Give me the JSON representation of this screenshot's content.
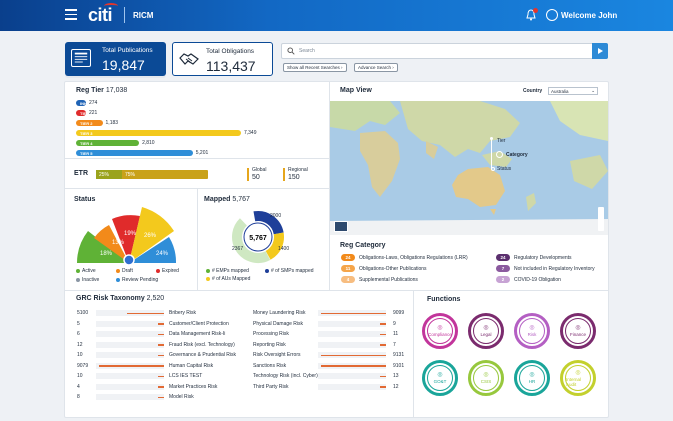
{
  "header": {
    "brand": "citi",
    "app_name": "RICM",
    "welcome": "Welcome John"
  },
  "stats": {
    "publications": {
      "label": "Total Publications",
      "value": "19,847"
    },
    "obligations": {
      "label": "Total Obligations",
      "value": "113,437"
    }
  },
  "search": {
    "placeholder": "Search",
    "recent_label": "Show all Recent Searches",
    "advanced_label": "Advance Search"
  },
  "reg_tier": {
    "title": "Reg Tier",
    "total": "17,038",
    "tiers": [
      {
        "label": "INHL",
        "value": "274",
        "fill": 0.0366,
        "color": "#1f63b5"
      },
      {
        "label": "TIER 1",
        "value": "221",
        "fill": 0.0296,
        "color": "#e02b2b"
      },
      {
        "label": "TIER 2",
        "value": "1,183",
        "fill": 0.158,
        "color": "#f28a1a"
      },
      {
        "label": "TIER 3",
        "value": "7,349",
        "fill": 0.982,
        "color": "#f3c91d"
      },
      {
        "label": "TIER 4",
        "value": "2,810",
        "fill": 0.3755,
        "color": "#5fb236"
      },
      {
        "label": "TIER 5",
        "value": "5,201",
        "fill": 0.695,
        "color": "#2f8ed8"
      }
    ]
  },
  "etr": {
    "title": "ETR",
    "seg1": "25%",
    "seg2": "75%",
    "global_label": "Global",
    "global_value": "50",
    "regional_label": "Regional",
    "regional_value": "150"
  },
  "status": {
    "title": "Status",
    "slices": [
      "18%",
      "13%",
      "19%",
      "26%",
      "24%"
    ],
    "legend": [
      {
        "label": "Active",
        "color": "#5fb236"
      },
      {
        "label": "Draft",
        "color": "#f28a1a"
      },
      {
        "label": "Expired",
        "color": "#e02b2b"
      },
      {
        "label": "Inactive",
        "color": "#8a96a4"
      },
      {
        "label": "Review Pending",
        "color": "#2f8ed8"
      }
    ]
  },
  "mapped": {
    "title": "Mapped",
    "total": "5,767",
    "center": "5,767",
    "values": [
      "2000",
      "1400",
      "2367"
    ],
    "legend": [
      {
        "label": "# EMPs mapped",
        "color": "#5fb236"
      },
      {
        "label": "# of SMPs mapped",
        "color": "#1f3f99"
      },
      {
        "label": "# of AUs Mapped",
        "color": "#f3c91d"
      }
    ]
  },
  "map": {
    "title": "Map View",
    "country_label": "Country",
    "country_value": "Australia",
    "legend": [
      "Tier",
      "Category",
      "Status"
    ]
  },
  "reg_category": {
    "title": "Reg Category",
    "items": [
      {
        "count": "24",
        "label": "Obligations-Laws, Obligations Regulations (LRR)",
        "color": "#f28a1a"
      },
      {
        "count": "11",
        "label": "Obligations-Other Publications",
        "color": "#f5a54a"
      },
      {
        "count": "4",
        "label": "Supplemental Publications",
        "color": "#f7bd80"
      },
      {
        "count": "24",
        "label": "Regulatory Developments",
        "color": "#5b2f6e"
      },
      {
        "count": "7",
        "label": "Not included in Regulatory Inventory",
        "color": "#8b5a9f"
      },
      {
        "count": "2",
        "label": "COVID-19 Obligation",
        "color": "#c7a3d4"
      }
    ]
  },
  "grc": {
    "title": "GRC Risk Taxonomy",
    "total": "2,520",
    "left": [
      {
        "count": "5100",
        "label": "Bribery Risk",
        "fill": 0.56
      },
      {
        "count": "5",
        "label": "Customer/Client Protection",
        "fill": 0.05
      },
      {
        "count": "6",
        "label": "Data Management Risk-Ii",
        "fill": 0.05
      },
      {
        "count": "12",
        "label": "Fraud Risk (excl. Technology)",
        "fill": 0.06
      },
      {
        "count": "10",
        "label": "Governance & Prudential Risk",
        "fill": 0.06
      },
      {
        "count": "9079",
        "label": "Human Capital Risk",
        "fill": 0.98
      },
      {
        "count": "10",
        "label": "LCS IES TEST",
        "fill": 0.06
      },
      {
        "count": "4",
        "label": "Market Practices Risk",
        "fill": 0.05
      },
      {
        "count": "8",
        "label": "Model Risk",
        "fill": 0.05
      }
    ],
    "right": [
      {
        "count": "9099",
        "label": "Money Laundering Risk",
        "fill": 0.98
      },
      {
        "count": "9",
        "label": "Physical Damage Risk",
        "fill": 0.05
      },
      {
        "count": "11",
        "label": "Processing Risk",
        "fill": 0.06
      },
      {
        "count": "7",
        "label": "Reporting Risk",
        "fill": 0.05
      },
      {
        "count": "9131",
        "label": "Risk Oversight Errors",
        "fill": 0.98
      },
      {
        "count": "9101",
        "label": "Sanctions Risk",
        "fill": 0.98
      },
      {
        "count": "13",
        "label": "Technology Risk (incl. Cyber)",
        "fill": 0.06
      },
      {
        "count": "12",
        "label": "Third Party Risk",
        "fill": 0.06
      }
    ]
  },
  "functions": {
    "title": "Functions",
    "items": [
      {
        "label": "Compliance",
        "color": "#c2359b"
      },
      {
        "label": "Legal",
        "color": "#7b2b6e"
      },
      {
        "label": "Risk",
        "color": "#b45fc3"
      },
      {
        "label": "Finance",
        "color": "#7b2b6e"
      },
      {
        "label": "GO&T",
        "color": "#1aa59a"
      },
      {
        "label": "CSIS",
        "color": "#97c83d"
      },
      {
        "label": "HR",
        "color": "#1aa59a"
      },
      {
        "label": "Internal Audit",
        "color": "#c3d02d"
      }
    ]
  }
}
